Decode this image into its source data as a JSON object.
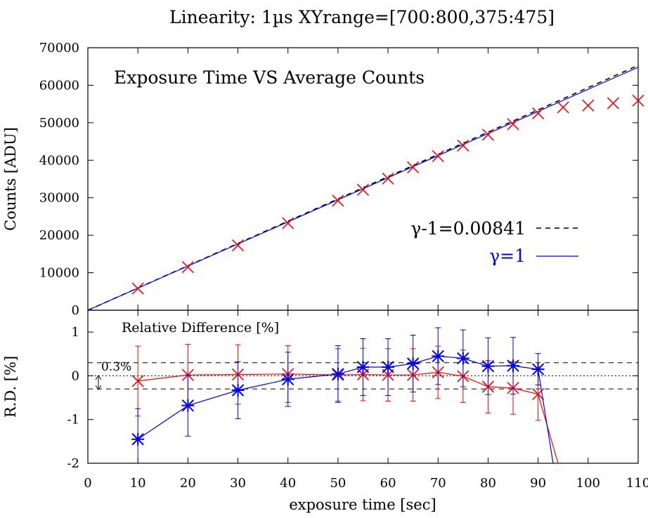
{
  "chart_data": [
    {
      "type": "scatter",
      "title": "Linearity: 1µs    XYrange=[700:800,375:475]",
      "annotation": "Exposure Time VS Average Counts",
      "ylabel": "Counts [ADU]",
      "xlim": [
        0,
        110
      ],
      "ylim": [
        0,
        70000
      ],
      "xticks": [
        0,
        10,
        20,
        30,
        40,
        50,
        60,
        70,
        80,
        90,
        100,
        110
      ],
      "yticks": [
        0,
        10000,
        20000,
        30000,
        40000,
        50000,
        60000,
        70000
      ],
      "points": {
        "x": [
          10,
          20,
          30,
          40,
          50,
          55,
          60,
          65,
          70,
          75,
          80,
          85,
          90,
          95,
          100,
          105,
          110
        ],
        "y": [
          5800,
          11500,
          17300,
          23200,
          29200,
          32100,
          35100,
          38100,
          41100,
          43900,
          46800,
          49600,
          52500,
          54100,
          54600,
          55200,
          55900
        ],
        "color": "#ff0000"
      },
      "series": [
        {
          "name": "γ-1=0.00841",
          "style": "dashed",
          "color": "#000000",
          "x": [
            0,
            110
          ],
          "y": [
            0,
            65300
          ]
        },
        {
          "name": "γ=1",
          "style": "solid",
          "color": "#0000ff",
          "x": [
            0,
            110
          ],
          "y": [
            0,
            64800
          ]
        }
      ]
    },
    {
      "type": "line",
      "title": "Relative Difference [%]",
      "xlabel": "exposure time [sec]",
      "ylabel": "R.D. [%]",
      "xlim": [
        0,
        110
      ],
      "ylim": [
        -2,
        1.5
      ],
      "xticks": [
        0,
        10,
        20,
        30,
        40,
        50,
        60,
        70,
        80,
        90,
        100,
        110
      ],
      "yticks": [
        -2,
        -1,
        0,
        1
      ],
      "reference_lines": [
        0.3,
        0,
        -0.3
      ],
      "annotation": "0.3%",
      "series": [
        {
          "color": "#ff0000",
          "marker": "x",
          "x": [
            10,
            20,
            30,
            40,
            50,
            55,
            60,
            65,
            70,
            75,
            80,
            85,
            90
          ],
          "y": [
            -0.12,
            0.02,
            0.03,
            0.04,
            0.02,
            0.03,
            0.02,
            0.02,
            0.08,
            -0.01,
            -0.25,
            -0.28,
            -0.42
          ],
          "err": [
            0.8,
            0.7,
            0.68,
            0.65,
            0.6,
            0.6,
            0.6,
            0.6,
            0.6,
            0.6,
            0.6,
            0.6,
            0.6
          ],
          "tail": {
            "x": [
              90,
              94
            ],
            "y": [
              -0.42,
              -2
            ]
          }
        },
        {
          "color": "#0000ff",
          "marker": "star",
          "x": [
            10,
            20,
            30,
            40,
            50,
            55,
            60,
            65,
            70,
            75,
            80,
            85,
            90
          ],
          "y": [
            -1.45,
            -0.68,
            -0.33,
            -0.08,
            0.04,
            0.2,
            0.2,
            0.28,
            0.45,
            0.4,
            0.22,
            0.23,
            0.15
          ],
          "err": [
            0.7,
            0.7,
            0.65,
            0.62,
            0.65,
            0.65,
            0.65,
            0.65,
            0.65,
            0.65,
            0.65,
            0.65,
            0.36
          ],
          "tail": {
            "x": [
              90,
              93
            ],
            "y": [
              0.15,
              -2
            ]
          }
        }
      ]
    }
  ]
}
